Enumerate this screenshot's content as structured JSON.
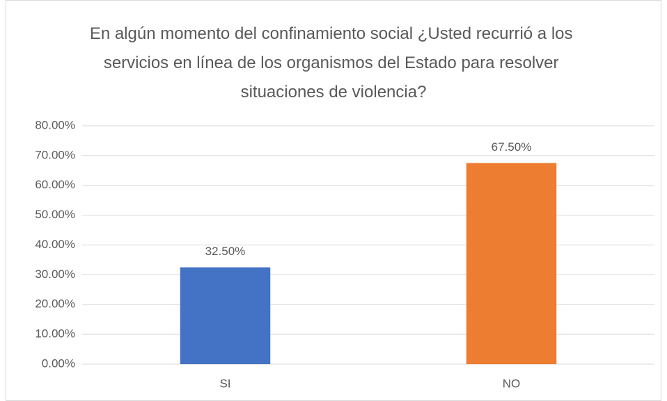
{
  "chart_data": {
    "type": "bar",
    "title": "En algún momento del confinamiento social ¿Usted recurrió a los servicios en línea de los organismos del Estado para resolver situaciones de violencia?",
    "categories": [
      "SI",
      "NO"
    ],
    "values": [
      32.5,
      67.5
    ],
    "value_labels": [
      "32.50%",
      "67.50%"
    ],
    "colors": [
      "#4472c4",
      "#ed7d31"
    ],
    "ylim": [
      0,
      80
    ],
    "yticks": [
      {
        "value": 0,
        "label": "0.00%"
      },
      {
        "value": 10,
        "label": "10.00%"
      },
      {
        "value": 20,
        "label": "20.00%"
      },
      {
        "value": 30,
        "label": "30.00%"
      },
      {
        "value": 40,
        "label": "40.00%"
      },
      {
        "value": 50,
        "label": "50.00%"
      },
      {
        "value": 60,
        "label": "60.00%"
      },
      {
        "value": 70,
        "label": "70.00%"
      },
      {
        "value": 80,
        "label": "80.00%"
      }
    ],
    "grid": true
  }
}
